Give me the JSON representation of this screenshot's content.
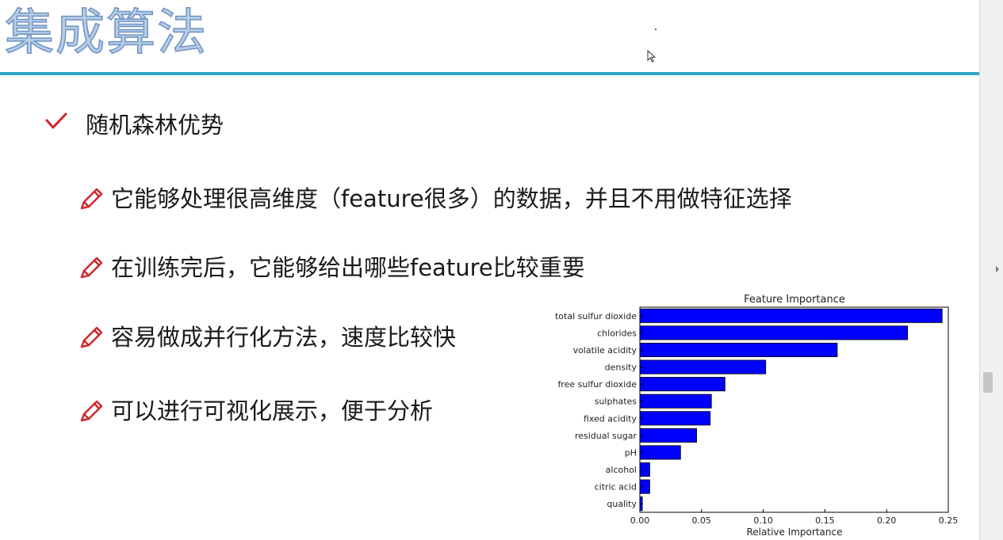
{
  "title": "集成算法",
  "heading": "随机森林优势",
  "bullets": [
    "它能够处理很高维度（feature很多）的数据，并且不用做特征选择",
    "在训练完后，它能够给出哪些feature比较重要",
    "容易做成并行化方法，速度比较快",
    "可以进行可视化展示，便于分析"
  ],
  "icons": {
    "heading_marker": "check-icon",
    "bullet_marker": "pencil-icon",
    "pointer": "cursor-icon"
  },
  "colors": {
    "title_fill": "#b6cde6",
    "title_outline": "#6f93c3",
    "rule": "#2fa6c5",
    "marker": "#d2232a",
    "bar": "#0000ff"
  },
  "chart_data": {
    "type": "bar",
    "orientation": "horizontal",
    "title": "Feature Importance",
    "xlabel": "Relative Importance",
    "ylabel": "",
    "categories": [
      "total sulfur dioxide",
      "chlorides",
      "volatile acidity",
      "density",
      "free sulfur dioxide",
      "sulphates",
      "fixed acidity",
      "residual sugar",
      "pH",
      "alcohol",
      "citric acid",
      "quality"
    ],
    "values": [
      0.245,
      0.217,
      0.16,
      0.102,
      0.069,
      0.058,
      0.057,
      0.046,
      0.033,
      0.008,
      0.008,
      0.002
    ],
    "xlim": [
      0,
      0.25
    ],
    "xticks": [
      "0.00",
      "0.05",
      "0.10",
      "0.15",
      "0.20",
      "0.25"
    ],
    "grid": false,
    "legend": "none"
  }
}
